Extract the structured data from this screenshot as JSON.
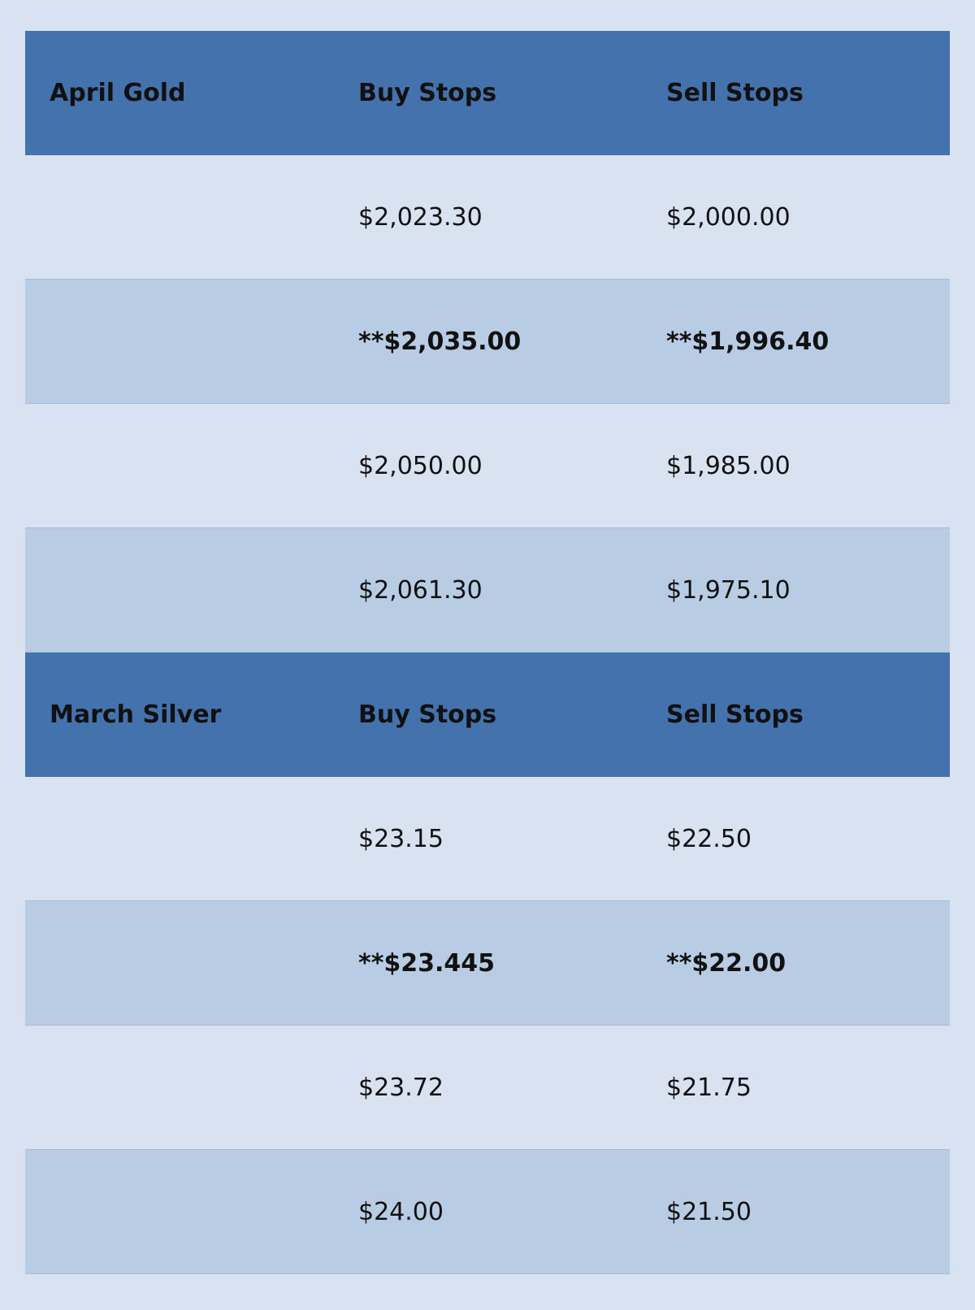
{
  "sections": [
    {
      "header": {
        "name": "April Gold",
        "buy": "Buy Stops",
        "sell": "Sell Stops"
      },
      "rows": [
        {
          "buy": "$2,023.30",
          "sell": "$2,000.00"
        },
        {
          "buy": "**$2,035.00",
          "sell": "**$1,996.40",
          "bold": true
        },
        {
          "buy": "$2,050.00",
          "sell": "$1,985.00"
        },
        {
          "buy": "$2,061.30",
          "sell": "$1,975.10"
        }
      ]
    },
    {
      "header": {
        "name": "March Silver",
        "buy": "Buy Stops",
        "sell": "Sell Stops"
      },
      "rows": [
        {
          "buy": "$23.15",
          "sell": "$22.50"
        },
        {
          "buy": "**$23.445",
          "sell": "**$22.00",
          "bold": true
        },
        {
          "buy": "$23.72",
          "sell": "$21.75"
        },
        {
          "buy": "$24.00",
          "sell": "$21.50"
        }
      ]
    }
  ]
}
